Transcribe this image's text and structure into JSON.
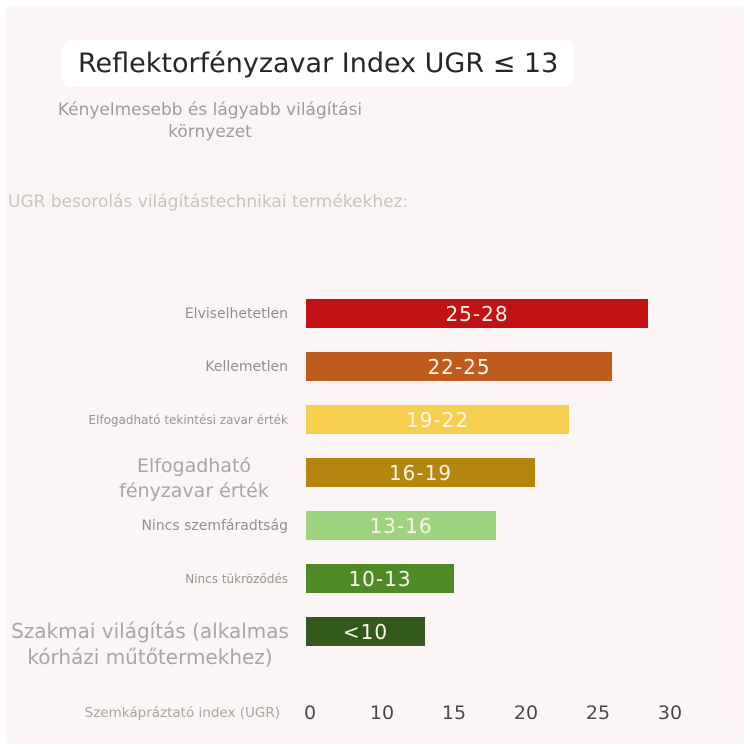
{
  "page": {
    "title": "Reflektorfényzavar Index UGR ≤ 13",
    "subtitle": "Kényelmesebb és lágyabb világítási környezet",
    "section_label": "UGR besorolás világítástechnikai termékekhez:"
  },
  "colors": {
    "background": "#fbf6f5",
    "frame": "#ffffff",
    "title_text": "#262626",
    "subtitle_text": "#9b9b9b",
    "section_label_text": "#c8c3c0",
    "bar_value_text": "#fbf5e9",
    "tick_text": "#4b4b4b",
    "axis_title_text": "#a9a5a2"
  },
  "chart_data": {
    "type": "bar",
    "orientation": "horizontal",
    "title": "UGR besorolás világítástechnikai termékekhez:",
    "xlabel": "Szemkápráztató index (UGR)",
    "ylabel": "",
    "x_ticks": [
      "0",
      "10",
      "15",
      "20",
      "25",
      "30"
    ],
    "xlim": [
      0,
      30
    ],
    "grid": false,
    "legend": false,
    "rows": [
      {
        "label": "Elviselhetetlen",
        "range": "25-28",
        "range_values": [
          25,
          28
        ],
        "bar_end": 28.5,
        "color": "#c11313",
        "label_size": "md"
      },
      {
        "label": "Kellemetlen",
        "range": "22-25",
        "range_values": [
          22,
          25
        ],
        "bar_end": 26,
        "color": "#bf5b1d",
        "label_size": "md"
      },
      {
        "label": "Elfogadható tekintési zavar érték",
        "range": "19-22",
        "range_values": [
          19,
          22
        ],
        "bar_end": 23,
        "color": "#f6cf50",
        "label_size": "sm"
      },
      {
        "label": "Elfogadható fényzavar érték",
        "range": "16-19",
        "range_values": [
          16,
          19
        ],
        "bar_end": 20.6,
        "color": "#b5860d",
        "label_size": "lg"
      },
      {
        "label": "Nincs szemfáradtság",
        "range": "13-16",
        "range_values": [
          13,
          16
        ],
        "bar_end": 17.9,
        "color": "#9ed37f",
        "label_size": "md"
      },
      {
        "label": "Nincs tükröződés",
        "range": "10-13",
        "range_values": [
          10,
          13
        ],
        "bar_end": 15,
        "color": "#4e8b27",
        "label_size": "sm"
      },
      {
        "label": "Szakmai világítás (alkalmas kórházi műtőtermekhez)",
        "range": "<10",
        "range_values": [
          0,
          10
        ],
        "bar_end": 13,
        "color": "#34591c",
        "label_size": "xl"
      }
    ]
  }
}
